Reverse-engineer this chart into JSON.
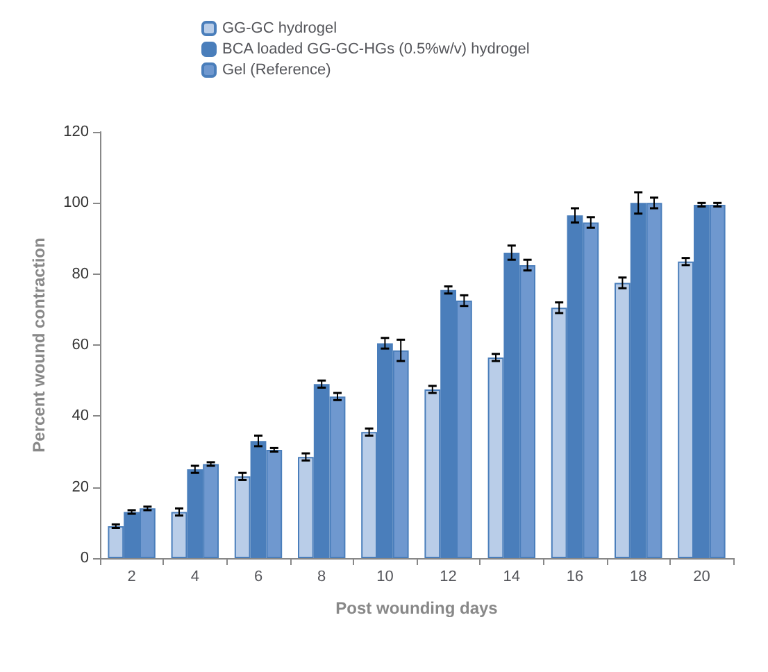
{
  "chart_data": {
    "type": "bar",
    "xlabel": "Post wounding days",
    "ylabel": "Percent wound contraction",
    "categories": [
      "2",
      "4",
      "6",
      "8",
      "10",
      "12",
      "14",
      "16",
      "18",
      "20"
    ],
    "series": [
      {
        "name": "GG-GC hydrogel",
        "color": "#b9cde8",
        "values": [
          9,
          13,
          23,
          28.5,
          35.5,
          47.5,
          56.5,
          70.5,
          77.5,
          83.5
        ],
        "errors": [
          0.5,
          1,
          1,
          1,
          1,
          1,
          1,
          1.5,
          1.5,
          1
        ]
      },
      {
        "name": "BCA loaded GG-GC-HGs (0.5%w/v) hydrogel",
        "color": "#4a7ebb",
        "values": [
          13,
          25,
          33,
          49,
          60.5,
          75.5,
          86,
          96.5,
          100,
          99.5
        ],
        "errors": [
          0.5,
          1,
          1.5,
          1,
          1.5,
          1,
          2,
          2,
          3,
          0.5
        ]
      },
      {
        "name": "Gel (Reference)",
        "color": "#6f98cf",
        "values": [
          14,
          26.5,
          30.5,
          45.5,
          58.5,
          72.5,
          82.5,
          94.5,
          100,
          99.5
        ],
        "errors": [
          0.5,
          0.5,
          0.5,
          1,
          3,
          1.5,
          1.5,
          1.5,
          1.5,
          0.5
        ]
      }
    ],
    "ylim": [
      0,
      120
    ],
    "yticks": [
      0,
      20,
      40,
      60,
      80,
      100,
      120
    ],
    "grid": false,
    "legend": "top"
  }
}
